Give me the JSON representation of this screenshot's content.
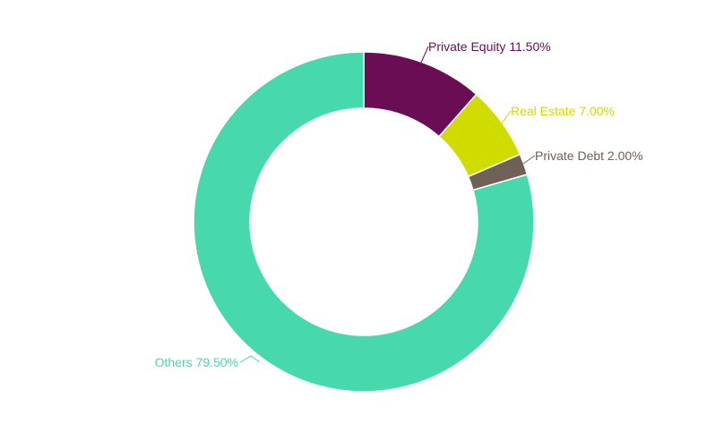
{
  "chart_data": {
    "type": "pie",
    "subtype": "donut",
    "title": "",
    "categories": [
      "Private Equity",
      "Real Estate",
      "Private Debt",
      "Others"
    ],
    "values": [
      11.5,
      7.0,
      2.0,
      79.5
    ],
    "colors": [
      "#6b0d55",
      "#d0dc00",
      "#6e6158",
      "#47d8ac"
    ],
    "labels": [
      "Private Equity 11.50%",
      "Real Estate 7.00%",
      "Private Debt 2.00%",
      "Others 79.50%"
    ],
    "legend": "none",
    "start_angle_deg": 0,
    "direction": "clockwise"
  }
}
